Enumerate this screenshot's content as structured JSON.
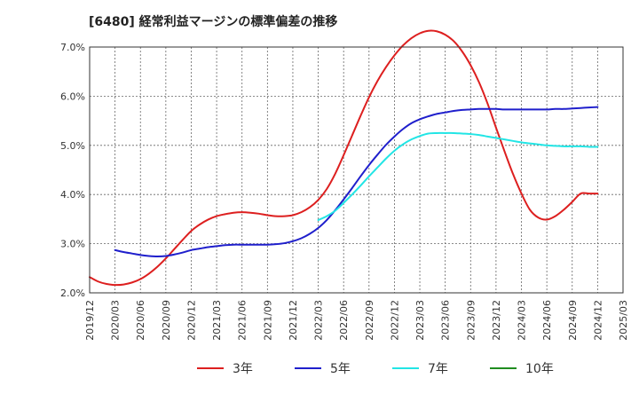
{
  "chart_data": {
    "type": "line",
    "title": "[6480]  経常利益マージンの標準偏差の推移",
    "xlabel": "",
    "ylabel": "",
    "ylim": [
      0.02,
      0.07
    ],
    "ytick_values": [
      0.02,
      0.03,
      0.04,
      0.05,
      0.06,
      0.07
    ],
    "ytick_labels": [
      "2.0%",
      "3.0%",
      "4.0%",
      "5.0%",
      "6.0%",
      "7.0%"
    ],
    "x_range": [
      "2019-12",
      "2025-03"
    ],
    "xtick_labels": [
      "2019/12",
      "2020/03",
      "2020/06",
      "2020/09",
      "2020/12",
      "2021/03",
      "2021/06",
      "2021/09",
      "2021/12",
      "2022/03",
      "2022/06",
      "2022/09",
      "2022/12",
      "2023/03",
      "2023/06",
      "2023/09",
      "2023/12",
      "2024/03",
      "2024/06",
      "2024/09",
      "2024/12",
      "2025/03"
    ],
    "grid": true,
    "legend_position": "bottom",
    "series": [
      {
        "name": "3年",
        "color": "#dd1f1f",
        "x": [
          "2019-12",
          "2020-01",
          "2020-02",
          "2020-03",
          "2020-04",
          "2020-05",
          "2020-06",
          "2020-07",
          "2020-08",
          "2020-09",
          "2020-10",
          "2020-11",
          "2020-12",
          "2021-01",
          "2021-02",
          "2021-03",
          "2021-04",
          "2021-05",
          "2021-06",
          "2021-07",
          "2021-08",
          "2021-09",
          "2021-10",
          "2021-11",
          "2021-12",
          "2022-01",
          "2022-02",
          "2022-03",
          "2022-04",
          "2022-05",
          "2022-06",
          "2022-07",
          "2022-08",
          "2022-09",
          "2022-10",
          "2022-11",
          "2022-12",
          "2023-01",
          "2023-02",
          "2023-03",
          "2023-04",
          "2023-05",
          "2023-06",
          "2023-07",
          "2023-08",
          "2023-09",
          "2023-10",
          "2023-11",
          "2023-12",
          "2024-01",
          "2024-02",
          "2024-03",
          "2024-04",
          "2024-05",
          "2024-06",
          "2024-07",
          "2024-08",
          "2024-09",
          "2024-10",
          "2024-11",
          "2024-12"
        ],
        "values": [
          0.0232,
          0.0223,
          0.0218,
          0.0216,
          0.0217,
          0.0221,
          0.0228,
          0.0239,
          0.0253,
          0.027,
          0.0289,
          0.0308,
          0.0326,
          0.0339,
          0.0349,
          0.0356,
          0.036,
          0.0363,
          0.0364,
          0.0363,
          0.0361,
          0.0358,
          0.0356,
          0.0356,
          0.0358,
          0.0364,
          0.0374,
          0.0389,
          0.0411,
          0.0442,
          0.048,
          0.052,
          0.056,
          0.0598,
          0.0631,
          0.0659,
          0.0683,
          0.0703,
          0.0718,
          0.0728,
          0.0733,
          0.0732,
          0.0725,
          0.0712,
          0.0691,
          0.0663,
          0.0628,
          0.0585,
          0.0536,
          0.0488,
          0.0442,
          0.0402,
          0.0369,
          0.0353,
          0.0349,
          0.0356,
          0.0369,
          0.0385,
          0.0402,
          0.0402,
          0.0402
        ]
      },
      {
        "name": "5年",
        "color": "#1f1fcc",
        "x": [
          "2020-03",
          "2020-04",
          "2020-05",
          "2020-06",
          "2020-07",
          "2020-08",
          "2020-09",
          "2020-10",
          "2020-11",
          "2020-12",
          "2021-01",
          "2021-02",
          "2021-03",
          "2021-04",
          "2021-05",
          "2021-06",
          "2021-07",
          "2021-08",
          "2021-09",
          "2021-10",
          "2021-11",
          "2021-12",
          "2022-01",
          "2022-02",
          "2022-03",
          "2022-04",
          "2022-05",
          "2022-06",
          "2022-07",
          "2022-08",
          "2022-09",
          "2022-10",
          "2022-11",
          "2022-12",
          "2023-01",
          "2023-02",
          "2023-03",
          "2023-04",
          "2023-05",
          "2023-06",
          "2023-07",
          "2023-08",
          "2023-09",
          "2023-10",
          "2023-11",
          "2023-12",
          "2024-01",
          "2024-02",
          "2024-03",
          "2024-04",
          "2024-05",
          "2024-06",
          "2024-07",
          "2024-08",
          "2024-09",
          "2024-10",
          "2024-11",
          "2024-12"
        ],
        "values": [
          0.0287,
          0.0283,
          0.028,
          0.0277,
          0.0275,
          0.0274,
          0.0275,
          0.0278,
          0.0282,
          0.0287,
          0.029,
          0.0293,
          0.0295,
          0.0297,
          0.0298,
          0.0298,
          0.0298,
          0.0298,
          0.0298,
          0.0299,
          0.0301,
          0.0305,
          0.0311,
          0.032,
          0.0332,
          0.0348,
          0.0368,
          0.039,
          0.0413,
          0.0437,
          0.046,
          0.0481,
          0.0501,
          0.0518,
          0.0533,
          0.0545,
          0.0553,
          0.0559,
          0.0564,
          0.0567,
          0.057,
          0.0572,
          0.0573,
          0.0574,
          0.0574,
          0.0574,
          0.0573,
          0.0573,
          0.0573,
          0.0573,
          0.0573,
          0.0573,
          0.0574,
          0.0574,
          0.0575,
          0.0576,
          0.0577,
          0.0578
        ]
      },
      {
        "name": "7年",
        "color": "#22e5e5",
        "x": [
          "2022-03",
          "2022-04",
          "2022-05",
          "2022-06",
          "2022-07",
          "2022-08",
          "2022-09",
          "2022-10",
          "2022-11",
          "2022-12",
          "2023-01",
          "2023-02",
          "2023-03",
          "2023-04",
          "2023-05",
          "2023-06",
          "2023-07",
          "2023-08",
          "2023-09",
          "2023-10",
          "2023-11",
          "2023-12",
          "2024-01",
          "2024-02",
          "2024-03",
          "2024-04",
          "2024-05",
          "2024-06",
          "2024-07",
          "2024-08",
          "2024-09",
          "2024-10",
          "2024-11",
          "2024-12"
        ],
        "values": [
          0.0348,
          0.0356,
          0.0367,
          0.0383,
          0.04,
          0.0418,
          0.0437,
          0.0455,
          0.0473,
          0.0489,
          0.0502,
          0.0512,
          0.0519,
          0.0524,
          0.0525,
          0.0525,
          0.0525,
          0.0524,
          0.0523,
          0.0521,
          0.0518,
          0.0515,
          0.0512,
          0.0509,
          0.0506,
          0.0504,
          0.0502,
          0.05,
          0.0499,
          0.0498,
          0.0498,
          0.0498,
          0.0497,
          0.0497
        ]
      },
      {
        "name": "10年",
        "color": "#1f8c1f",
        "x": [],
        "values": []
      }
    ]
  }
}
